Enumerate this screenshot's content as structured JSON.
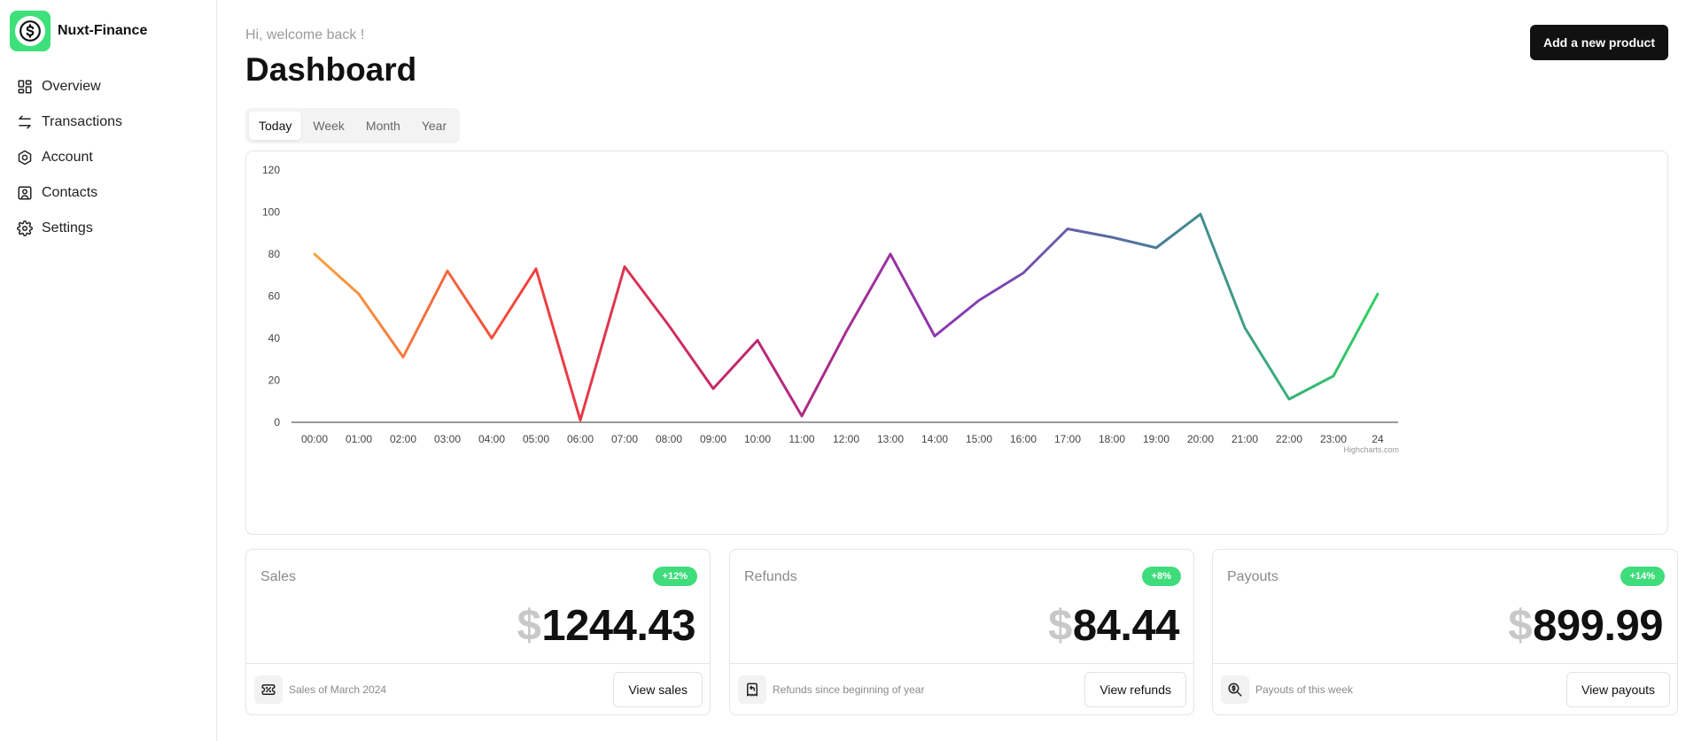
{
  "brand": {
    "name": "Nuxt-Finance",
    "logo_icon": "dollar-circle-icon",
    "accent": "#3ee07a"
  },
  "sidebar": {
    "items": [
      {
        "label": "Overview",
        "icon": "grid-icon"
      },
      {
        "label": "Transactions",
        "icon": "arrows-exchange-icon"
      },
      {
        "label": "Account",
        "icon": "hexagon-icon"
      },
      {
        "label": "Contacts",
        "icon": "contact-card-icon"
      },
      {
        "label": "Settings",
        "icon": "gear-icon"
      }
    ]
  },
  "header": {
    "welcome": "Hi, welcome back !",
    "title": "Dashboard",
    "add_button": "Add a new product"
  },
  "tabs": {
    "items": [
      "Today",
      "Week",
      "Month",
      "Year"
    ],
    "active": "Today"
  },
  "chart_data": {
    "type": "line",
    "categories": [
      "00:00",
      "01:00",
      "02:00",
      "03:00",
      "04:00",
      "05:00",
      "06:00",
      "07:00",
      "08:00",
      "09:00",
      "10:00",
      "11:00",
      "12:00",
      "13:00",
      "14:00",
      "15:00",
      "16:00",
      "17:00",
      "18:00",
      "19:00",
      "20:00",
      "21:00",
      "22:00",
      "23:00",
      "24"
    ],
    "values": [
      80,
      61,
      31,
      72,
      40,
      73,
      1,
      74,
      46,
      16,
      39,
      3,
      43,
      80,
      41,
      58,
      71,
      92,
      88,
      83,
      99,
      45,
      11,
      22,
      61
    ],
    "ylim": [
      0,
      120
    ],
    "yticks": [
      0,
      20,
      40,
      60,
      80,
      100,
      120
    ],
    "grid": false,
    "gradient_colors": [
      "#f7a440",
      "#f2403a",
      "#c0266e",
      "#8a37b5",
      "#477f99",
      "#2fd263"
    ],
    "credit": "Highcharts.com"
  },
  "stats": [
    {
      "label": "Sales",
      "badge": "+12%",
      "currency": "$",
      "value": "1244.43",
      "footer_text": "Sales of March 2024",
      "footer_icon": "receipt-percent-icon",
      "button": "View sales"
    },
    {
      "label": "Refunds",
      "badge": "+8%",
      "currency": "$",
      "value": "84.44",
      "footer_text": "Refunds since beginning of year",
      "footer_icon": "receipt-refund-icon",
      "button": "View refunds"
    },
    {
      "label": "Payouts",
      "badge": "+14%",
      "currency": "$",
      "value": "899.99",
      "footer_text": "Payouts of this week",
      "footer_icon": "magnify-dollar-icon",
      "button": "View payouts"
    }
  ]
}
